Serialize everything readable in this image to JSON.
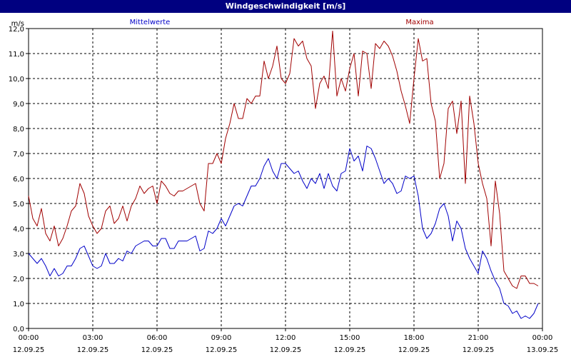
{
  "window": {
    "title": "Windgeschwindigkeit [m/s]"
  },
  "colors": {
    "titlebar": "#000080",
    "mean": "#0000c8",
    "max": "#a00000",
    "grid": "#000000"
  },
  "chart_data": {
    "type": "line",
    "title": "Windgeschwindigkeit [m/s]",
    "ylabel": "m/s",
    "ylim": [
      0,
      12
    ],
    "ytick_labels": [
      "0,0",
      "1,0",
      "2,0",
      "3,0",
      "4,0",
      "5,0",
      "6,0",
      "7,0",
      "8,0",
      "9,0",
      "10,0",
      "11,0",
      "12,0"
    ],
    "xlim_hours": [
      0,
      24
    ],
    "xtick_labels": [
      {
        "time": "00:00",
        "date": "12.09.25"
      },
      {
        "time": "03:00",
        "date": "12.09.25"
      },
      {
        "time": "06:00",
        "date": "12.09.25"
      },
      {
        "time": "09:00",
        "date": "12.09.25"
      },
      {
        "time": "12:00",
        "date": "12.09.25"
      },
      {
        "time": "15:00",
        "date": "12.09.25"
      },
      {
        "time": "18:00",
        "date": "12.09.25"
      },
      {
        "time": "21:00",
        "date": "12.09.25"
      },
      {
        "time": "00:00",
        "date": "13.09.25"
      }
    ],
    "grid": true,
    "series": [
      {
        "name": "Mittelwerte",
        "color": "#0000c8",
        "points": [
          [
            0.0,
            3.0
          ],
          [
            0.2,
            2.8
          ],
          [
            0.4,
            2.6
          ],
          [
            0.6,
            2.8
          ],
          [
            0.8,
            2.5
          ],
          [
            1.0,
            2.1
          ],
          [
            1.2,
            2.4
          ],
          [
            1.4,
            2.1
          ],
          [
            1.6,
            2.2
          ],
          [
            1.8,
            2.5
          ],
          [
            2.0,
            2.5
          ],
          [
            2.2,
            2.8
          ],
          [
            2.4,
            3.2
          ],
          [
            2.6,
            3.3
          ],
          [
            2.8,
            2.9
          ],
          [
            3.0,
            2.5
          ],
          [
            3.2,
            2.4
          ],
          [
            3.4,
            2.5
          ],
          [
            3.6,
            3.0
          ],
          [
            3.8,
            2.6
          ],
          [
            4.0,
            2.6
          ],
          [
            4.2,
            2.8
          ],
          [
            4.4,
            2.7
          ],
          [
            4.6,
            3.1
          ],
          [
            4.8,
            3.0
          ],
          [
            5.0,
            3.3
          ],
          [
            5.2,
            3.4
          ],
          [
            5.4,
            3.5
          ],
          [
            5.6,
            3.5
          ],
          [
            5.8,
            3.3
          ],
          [
            6.0,
            3.3
          ],
          [
            6.2,
            3.6
          ],
          [
            6.4,
            3.6
          ],
          [
            6.6,
            3.2
          ],
          [
            6.8,
            3.2
          ],
          [
            7.0,
            3.5
          ],
          [
            7.2,
            3.5
          ],
          [
            7.4,
            3.5
          ],
          [
            7.6,
            3.6
          ],
          [
            7.8,
            3.7
          ],
          [
            8.0,
            3.1
          ],
          [
            8.2,
            3.2
          ],
          [
            8.4,
            3.9
          ],
          [
            8.6,
            3.8
          ],
          [
            8.8,
            4.0
          ],
          [
            9.0,
            4.4
          ],
          [
            9.2,
            4.1
          ],
          [
            9.4,
            4.5
          ],
          [
            9.6,
            4.9
          ],
          [
            9.8,
            5.0
          ],
          [
            10.0,
            4.9
          ],
          [
            10.2,
            5.3
          ],
          [
            10.4,
            5.7
          ],
          [
            10.6,
            5.7
          ],
          [
            10.8,
            6.0
          ],
          [
            11.0,
            6.5
          ],
          [
            11.2,
            6.8
          ],
          [
            11.4,
            6.3
          ],
          [
            11.6,
            6.0
          ],
          [
            11.8,
            6.6
          ],
          [
            12.0,
            6.6
          ],
          [
            12.2,
            6.4
          ],
          [
            12.4,
            6.2
          ],
          [
            12.6,
            6.3
          ],
          [
            12.8,
            5.9
          ],
          [
            13.0,
            5.6
          ],
          [
            13.2,
            6.0
          ],
          [
            13.4,
            5.8
          ],
          [
            13.6,
            6.2
          ],
          [
            13.8,
            5.6
          ],
          [
            14.0,
            6.2
          ],
          [
            14.2,
            5.7
          ],
          [
            14.4,
            5.5
          ],
          [
            14.6,
            6.2
          ],
          [
            14.8,
            6.3
          ],
          [
            15.0,
            7.2
          ],
          [
            15.2,
            6.7
          ],
          [
            15.4,
            6.9
          ],
          [
            15.6,
            6.3
          ],
          [
            15.8,
            7.3
          ],
          [
            16.0,
            7.2
          ],
          [
            16.2,
            6.8
          ],
          [
            16.4,
            6.3
          ],
          [
            16.6,
            5.8
          ],
          [
            16.8,
            6.0
          ],
          [
            17.0,
            5.8
          ],
          [
            17.2,
            5.4
          ],
          [
            17.4,
            5.5
          ],
          [
            17.6,
            6.1
          ],
          [
            17.8,
            6.0
          ],
          [
            18.0,
            6.1
          ],
          [
            18.2,
            5.3
          ],
          [
            18.4,
            4.0
          ],
          [
            18.6,
            3.6
          ],
          [
            18.8,
            3.8
          ],
          [
            19.0,
            4.2
          ],
          [
            19.2,
            4.8
          ],
          [
            19.4,
            5.0
          ],
          [
            19.6,
            4.5
          ],
          [
            19.8,
            3.5
          ],
          [
            20.0,
            4.3
          ],
          [
            20.2,
            4.0
          ],
          [
            20.4,
            3.2
          ],
          [
            20.6,
            2.8
          ],
          [
            20.8,
            2.5
          ],
          [
            21.0,
            2.2
          ],
          [
            21.2,
            3.1
          ],
          [
            21.4,
            2.8
          ],
          [
            21.6,
            2.3
          ],
          [
            21.8,
            1.9
          ],
          [
            22.0,
            1.6
          ],
          [
            22.2,
            1.0
          ],
          [
            22.4,
            0.9
          ],
          [
            22.6,
            0.6
          ],
          [
            22.8,
            0.7
          ],
          [
            23.0,
            0.4
          ],
          [
            23.2,
            0.5
          ],
          [
            23.4,
            0.4
          ],
          [
            23.6,
            0.6
          ],
          [
            23.8,
            1.0
          ]
        ]
      },
      {
        "name": "Maxima",
        "color": "#a00000",
        "points": [
          [
            0.0,
            5.3
          ],
          [
            0.2,
            4.4
          ],
          [
            0.4,
            4.1
          ],
          [
            0.6,
            4.8
          ],
          [
            0.8,
            3.8
          ],
          [
            1.0,
            3.5
          ],
          [
            1.2,
            4.1
          ],
          [
            1.4,
            3.3
          ],
          [
            1.6,
            3.6
          ],
          [
            1.8,
            4.1
          ],
          [
            2.0,
            4.7
          ],
          [
            2.2,
            4.9
          ],
          [
            2.4,
            5.8
          ],
          [
            2.6,
            5.4
          ],
          [
            2.8,
            4.5
          ],
          [
            3.0,
            4.1
          ],
          [
            3.2,
            3.8
          ],
          [
            3.4,
            4.0
          ],
          [
            3.6,
            4.7
          ],
          [
            3.8,
            4.9
          ],
          [
            4.0,
            4.2
          ],
          [
            4.2,
            4.4
          ],
          [
            4.4,
            4.9
          ],
          [
            4.6,
            4.3
          ],
          [
            4.8,
            4.9
          ],
          [
            5.0,
            5.2
          ],
          [
            5.2,
            5.7
          ],
          [
            5.4,
            5.4
          ],
          [
            5.6,
            5.6
          ],
          [
            5.8,
            5.7
          ],
          [
            6.0,
            5.0
          ],
          [
            6.2,
            5.9
          ],
          [
            6.4,
            5.7
          ],
          [
            6.6,
            5.4
          ],
          [
            6.8,
            5.3
          ],
          [
            7.0,
            5.5
          ],
          [
            7.2,
            5.5
          ],
          [
            7.4,
            5.6
          ],
          [
            7.6,
            5.7
          ],
          [
            7.8,
            5.8
          ],
          [
            8.0,
            5.0
          ],
          [
            8.2,
            4.7
          ],
          [
            8.4,
            6.6
          ],
          [
            8.6,
            6.6
          ],
          [
            8.8,
            7.0
          ],
          [
            9.0,
            6.6
          ],
          [
            9.2,
            7.6
          ],
          [
            9.4,
            8.2
          ],
          [
            9.6,
            9.0
          ],
          [
            9.8,
            8.4
          ],
          [
            10.0,
            8.4
          ],
          [
            10.2,
            9.2
          ],
          [
            10.4,
            9.0
          ],
          [
            10.6,
            9.3
          ],
          [
            10.8,
            9.3
          ],
          [
            11.0,
            10.7
          ],
          [
            11.2,
            10.0
          ],
          [
            11.4,
            10.5
          ],
          [
            11.6,
            11.3
          ],
          [
            11.8,
            10.0
          ],
          [
            12.0,
            9.8
          ],
          [
            12.2,
            10.2
          ],
          [
            12.4,
            11.6
          ],
          [
            12.6,
            11.3
          ],
          [
            12.8,
            11.5
          ],
          [
            13.0,
            10.8
          ],
          [
            13.2,
            10.5
          ],
          [
            13.4,
            8.8
          ],
          [
            13.6,
            9.8
          ],
          [
            13.8,
            10.1
          ],
          [
            14.0,
            9.6
          ],
          [
            14.2,
            11.9
          ],
          [
            14.4,
            9.3
          ],
          [
            14.6,
            10.0
          ],
          [
            14.8,
            9.5
          ],
          [
            15.0,
            10.4
          ],
          [
            15.2,
            11.0
          ],
          [
            15.4,
            9.3
          ],
          [
            15.6,
            11.1
          ],
          [
            15.8,
            11.0
          ],
          [
            16.0,
            9.6
          ],
          [
            16.2,
            11.4
          ],
          [
            16.4,
            11.2
          ],
          [
            16.6,
            11.5
          ],
          [
            16.8,
            11.3
          ],
          [
            17.0,
            10.9
          ],
          [
            17.2,
            10.3
          ],
          [
            17.4,
            9.5
          ],
          [
            17.6,
            8.9
          ],
          [
            17.8,
            8.2
          ],
          [
            18.0,
            10.0
          ],
          [
            18.2,
            11.6
          ],
          [
            18.4,
            10.7
          ],
          [
            18.6,
            10.8
          ],
          [
            18.8,
            9.0
          ],
          [
            19.0,
            8.3
          ],
          [
            19.2,
            6.0
          ],
          [
            19.4,
            6.6
          ],
          [
            19.6,
            8.8
          ],
          [
            19.8,
            9.1
          ],
          [
            20.0,
            7.8
          ],
          [
            20.2,
            9.1
          ],
          [
            20.4,
            5.8
          ],
          [
            20.6,
            9.3
          ],
          [
            20.8,
            8.2
          ],
          [
            21.0,
            6.6
          ],
          [
            21.2,
            5.8
          ],
          [
            21.4,
            5.2
          ],
          [
            21.6,
            3.3
          ],
          [
            21.8,
            5.9
          ],
          [
            22.0,
            4.6
          ],
          [
            22.2,
            2.3
          ],
          [
            22.4,
            2.0
          ],
          [
            22.6,
            1.7
          ],
          [
            22.8,
            1.6
          ],
          [
            23.0,
            2.1
          ],
          [
            23.2,
            2.1
          ],
          [
            23.4,
            1.8
          ],
          [
            23.6,
            1.8
          ],
          [
            23.8,
            1.7
          ]
        ]
      }
    ]
  }
}
